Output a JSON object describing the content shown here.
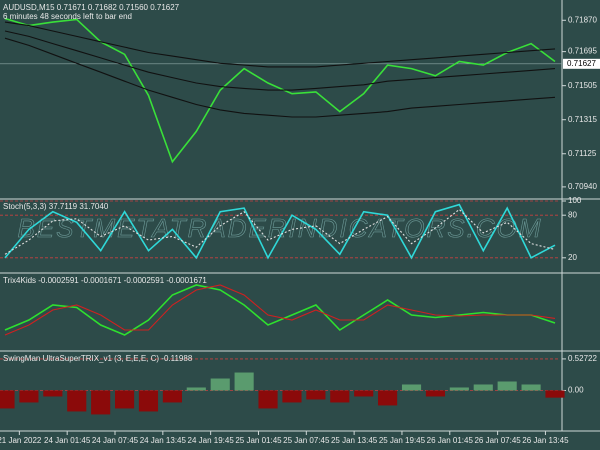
{
  "chart_data": [
    {
      "type": "line",
      "title": "AUDUSD,M15  0.71671 0.71682 0.71560 0.71627",
      "subtitle": "6 minutes 48 seconds left to bar end",
      "watermark": "BESTMETATRADERINDICATORS.COM",
      "x": [
        0,
        1,
        2,
        3,
        4,
        5,
        6,
        7,
        8,
        9,
        10,
        11,
        12,
        13,
        14,
        15,
        16,
        17,
        18,
        19,
        20,
        21,
        22,
        23
      ],
      "xlim": [
        0,
        23
      ],
      "ylim": [
        0.70878,
        0.71972
      ],
      "yticks": [
        {
          "value": 0.7187,
          "label": "0.71870"
        },
        {
          "value": 0.71695,
          "label": "0.71695"
        },
        {
          "value": 0.71505,
          "label": "0.71505"
        },
        {
          "value": 0.71315,
          "label": "0.71315"
        },
        {
          "value": 0.71125,
          "label": "0.71125"
        },
        {
          "value": 0.7094,
          "label": "0.70940"
        }
      ],
      "current_price": 0.71627,
      "series": [
        {
          "name": "Close",
          "color": "#39e039",
          "values": [
            0.7188,
            0.7184,
            0.7186,
            0.71875,
            0.7175,
            0.7168,
            0.7145,
            0.7108,
            0.7125,
            0.7148,
            0.716,
            0.7152,
            0.7146,
            0.7147,
            0.7136,
            0.7146,
            0.7162,
            0.716,
            0.7156,
            0.7164,
            0.7162,
            0.7169,
            0.7174,
            0.7164
          ]
        },
        {
          "name": "Upper",
          "color": "#111111",
          "values": [
            0.7186,
            0.7184,
            0.7181,
            0.7178,
            0.7175,
            0.7172,
            0.7169,
            0.7167,
            0.7165,
            0.7163,
            0.7162,
            0.7161,
            0.7161,
            0.7161,
            0.7162,
            0.7163,
            0.7164,
            0.7165,
            0.7166,
            0.7167,
            0.7168,
            0.7169,
            0.717,
            0.7171
          ]
        },
        {
          "name": "Middle",
          "color": "#111111",
          "values": [
            0.7181,
            0.7178,
            0.7174,
            0.717,
            0.7166,
            0.7162,
            0.7158,
            0.7155,
            0.7152,
            0.715,
            0.7149,
            0.7148,
            0.7148,
            0.7149,
            0.715,
            0.7151,
            0.7153,
            0.7154,
            0.7155,
            0.7156,
            0.7157,
            0.7158,
            0.7159,
            0.716
          ]
        },
        {
          "name": "Lower",
          "color": "#111111",
          "values": [
            0.7177,
            0.7173,
            0.7168,
            0.7163,
            0.7158,
            0.7153,
            0.7148,
            0.7144,
            0.714,
            0.7137,
            0.7135,
            0.7134,
            0.7133,
            0.7133,
            0.7134,
            0.7135,
            0.7136,
            0.7138,
            0.7139,
            0.714,
            0.7141,
            0.7142,
            0.7143,
            0.7144
          ]
        }
      ]
    },
    {
      "type": "line",
      "title": "Stoch(5,3,3) 37.7119 31.7040",
      "x": [
        0,
        1,
        2,
        3,
        4,
        5,
        6,
        7,
        8,
        9,
        10,
        11,
        12,
        13,
        14,
        15,
        16,
        17,
        18,
        19,
        20,
        21,
        22,
        23
      ],
      "xlim": [
        0,
        23
      ],
      "ylim": [
        0,
        100
      ],
      "yticks": [
        20,
        80,
        100
      ],
      "grid": true,
      "series": [
        {
          "name": "Main",
          "color": "#2fd8d8",
          "values": [
            20,
            60,
            85,
            70,
            30,
            85,
            30,
            60,
            20,
            85,
            90,
            20,
            80,
            60,
            25,
            85,
            80,
            20,
            85,
            95,
            30,
            90,
            20,
            37.7119
          ]
        },
        {
          "name": "Signal",
          "color": "#e0e0e0",
          "dash": true,
          "values": [
            25,
            45,
            72,
            75,
            50,
            65,
            45,
            50,
            35,
            65,
            85,
            45,
            60,
            65,
            40,
            60,
            78,
            40,
            62,
            88,
            55,
            70,
            40,
            31.704
          ]
        }
      ]
    },
    {
      "type": "line",
      "title": "Trix4Kids -0.0002591 -0.0001671 -0.0002591 -0.0001671",
      "x": [
        0,
        1,
        2,
        3,
        4,
        5,
        6,
        7,
        8,
        9,
        10,
        11,
        12,
        13,
        14,
        15,
        16,
        17,
        18,
        19,
        20,
        21,
        22,
        23
      ],
      "xlim": [
        0,
        23
      ],
      "ylim": [
        -0.0008,
        0.0007
      ],
      "series": [
        {
          "name": "Trix",
          "color": "#2ee02e",
          "values": [
            -0.0004,
            -0.0002,
            0.0001,
            5e-05,
            -0.0003,
            -0.0005,
            -0.0002,
            0.0003,
            0.0005,
            0.0004,
            0.0001,
            -0.0003,
            -0.0001,
            0.0001,
            -0.0004,
            -0.0001,
            0.0002,
            -0.0001,
            -0.00015,
            -0.0001,
            -5e-05,
            -0.0001,
            -0.0001,
            -0.0002591
          ]
        },
        {
          "name": "Signal",
          "color": "#d02020",
          "values": [
            -0.0005,
            -0.0003,
            0.0,
            0.0001,
            -0.0001,
            -0.0004,
            -0.0004,
            0.0001,
            0.0004,
            0.0005,
            0.0003,
            -0.0001,
            -0.0002,
            0.0,
            -0.0002,
            -0.0002,
            0.0001,
            0.0,
            -0.0001,
            -0.00012,
            -0.0001,
            -0.0001,
            -0.0001,
            -0.0001671
          ]
        }
      ]
    },
    {
      "type": "bar",
      "title": "SwingMan UltraSuperTRIX_v1 (3, E,E,E, C) -0.11988",
      "x": [
        0,
        1,
        2,
        3,
        4,
        5,
        6,
        7,
        8,
        9,
        10,
        11,
        12,
        13,
        14,
        15,
        16,
        17,
        18,
        19,
        20,
        21,
        22,
        23
      ],
      "xlim": [
        0,
        23
      ],
      "ylim": [
        -0.66,
        0.626
      ],
      "yticks": [
        {
          "value": 0.52722,
          "label": "0.52722"
        },
        {
          "value": 0,
          "label": "0.00"
        }
      ],
      "grid": true,
      "pos_color": "#5a9b6e",
      "neg_color": "#8b0a0a",
      "values": [
        -0.3,
        -0.2,
        -0.1,
        -0.35,
        -0.4,
        -0.3,
        -0.35,
        -0.2,
        0.05,
        0.2,
        0.3,
        -0.3,
        -0.2,
        -0.15,
        -0.2,
        -0.1,
        -0.25,
        0.1,
        -0.1,
        0.05,
        0.1,
        0.15,
        0.1,
        -0.11988
      ],
      "xticks": [
        {
          "value": 0.6,
          "label": "21 Jan 2022"
        },
        {
          "value": 2.6,
          "label": "24 Jan 01:45"
        },
        {
          "value": 4.6,
          "label": "24 Jan 07:45"
        },
        {
          "value": 6.6,
          "label": "24 Jan 13:45"
        },
        {
          "value": 8.6,
          "label": "24 Jan 19:45"
        },
        {
          "value": 10.6,
          "label": "25 Jan 01:45"
        },
        {
          "value": 12.6,
          "label": "25 Jan 07:45"
        },
        {
          "value": 14.6,
          "label": "25 Jan 13:45"
        },
        {
          "value": 16.6,
          "label": "25 Jan 19:45"
        },
        {
          "value": 18.6,
          "label": "26 Jan 01:45"
        },
        {
          "value": 20.6,
          "label": "26 Jan 07:45"
        },
        {
          "value": 22.6,
          "label": "26 Jan 13:45"
        }
      ]
    }
  ]
}
